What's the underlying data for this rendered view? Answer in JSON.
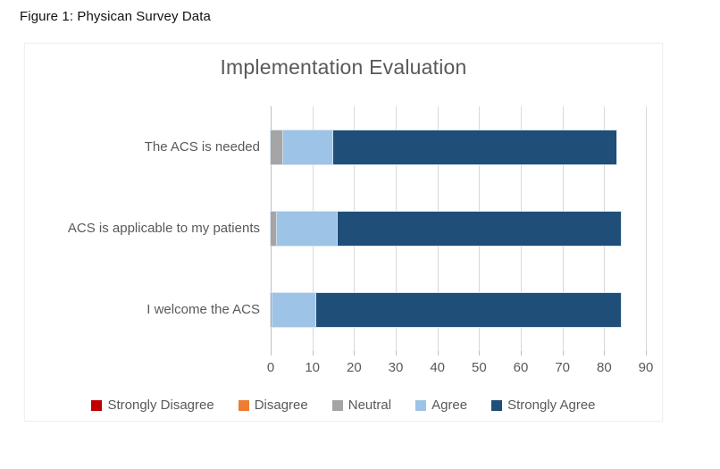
{
  "figure_caption": "Figure 1: Physican Survey Data",
  "chart_data": {
    "type": "bar",
    "orientation": "horizontal",
    "stacked": true,
    "title": "Implementation Evaluation",
    "categories": [
      "The ACS is needed",
      "ACS is applicable to my patients",
      "I welcome the ACS"
    ],
    "series": [
      {
        "name": "Strongly Disagree",
        "color": "#C00000",
        "values": [
          0,
          0,
          0
        ]
      },
      {
        "name": "Disagree",
        "color": "#ED7D31",
        "values": [
          0,
          0,
          0
        ]
      },
      {
        "name": "Neutral",
        "color": "#A5A5A5",
        "values": [
          3,
          1.5,
          0.5
        ]
      },
      {
        "name": "Agree",
        "color": "#9DC3E6",
        "values": [
          12,
          14.5,
          10.5
        ]
      },
      {
        "name": "Strongly Agree",
        "color": "#1F4E79",
        "values": [
          68,
          68,
          73
        ]
      }
    ],
    "x_axis": {
      "min": 0,
      "max": 90,
      "step": 10,
      "tick_labels": [
        "0",
        "10",
        "20",
        "30",
        "40",
        "50",
        "60",
        "70",
        "80",
        "90"
      ]
    },
    "grid": true,
    "legend_position": "bottom",
    "colors": {
      "title_text": "#595959",
      "axis_text": "#595959",
      "gridline": "#D9D9D9",
      "axis_line": "#BFBFBF"
    }
  }
}
